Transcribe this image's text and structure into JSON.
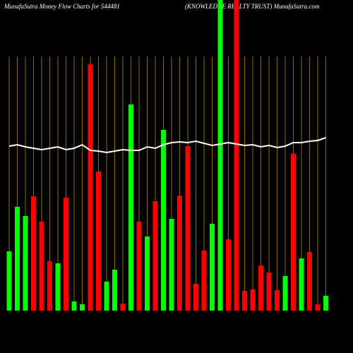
{
  "chart_data": {
    "type": "bar",
    "title": "MunafaSutra  Money Flow  Charts for 544481",
    "subtitle": "(KNOWLEDGE REALTY TRUST) MunafaSutra.com",
    "series": [
      {
        "color": "#ffffff",
        "values": [
          233,
          235,
          232,
          230,
          228,
          230,
          232,
          228,
          230,
          235,
          227,
          226,
          224,
          226,
          228,
          227,
          227,
          232,
          230,
          235,
          238,
          239,
          238,
          240,
          237,
          234,
          236,
          238,
          236,
          234,
          235,
          232,
          234,
          231,
          233,
          238,
          238,
          240,
          241,
          245
        ]
      },
      {
        "colors": [
          "#00ff00",
          "#00ff00",
          "#00ff00",
          "#ff0000",
          "#ff0000",
          "#ff0000",
          "#00ff00",
          "#ff0000",
          "#00ff00",
          "#00ff00",
          "#ff0000",
          "#ff0000",
          "#00ff00",
          "#00ff00",
          "#ff0000",
          "#00ff00",
          "#ff0000",
          "#00ff00",
          "#ff0000",
          "#00ff00",
          "#00ff00",
          "#ff0000",
          "#ff0000",
          "#ff0000",
          "#ff0000",
          "#00ff00",
          "#00ff00",
          "#ff0000",
          "#ff0000",
          "#ff0000",
          "#ff0000",
          "#ff0000",
          "#ff0000",
          "#ff0000",
          "#00ff00",
          "#ff0000",
          "#00ff00",
          "#ff0000",
          "#ff0000",
          "#00ff00"
        ],
        "values": [
          84,
          147,
          134,
          162,
          126,
          70,
          67,
          160,
          13,
          9,
          349,
          197,
          41,
          58,
          10,
          292,
          126,
          105,
          155,
          256,
          130,
          163,
          233,
          38,
          85,
          123,
          440,
          101,
          440,
          28,
          30,
          64,
          54,
          29,
          49,
          222,
          74,
          83,
          9,
          21
        ]
      }
    ],
    "grid_color": "#b8860b"
  }
}
